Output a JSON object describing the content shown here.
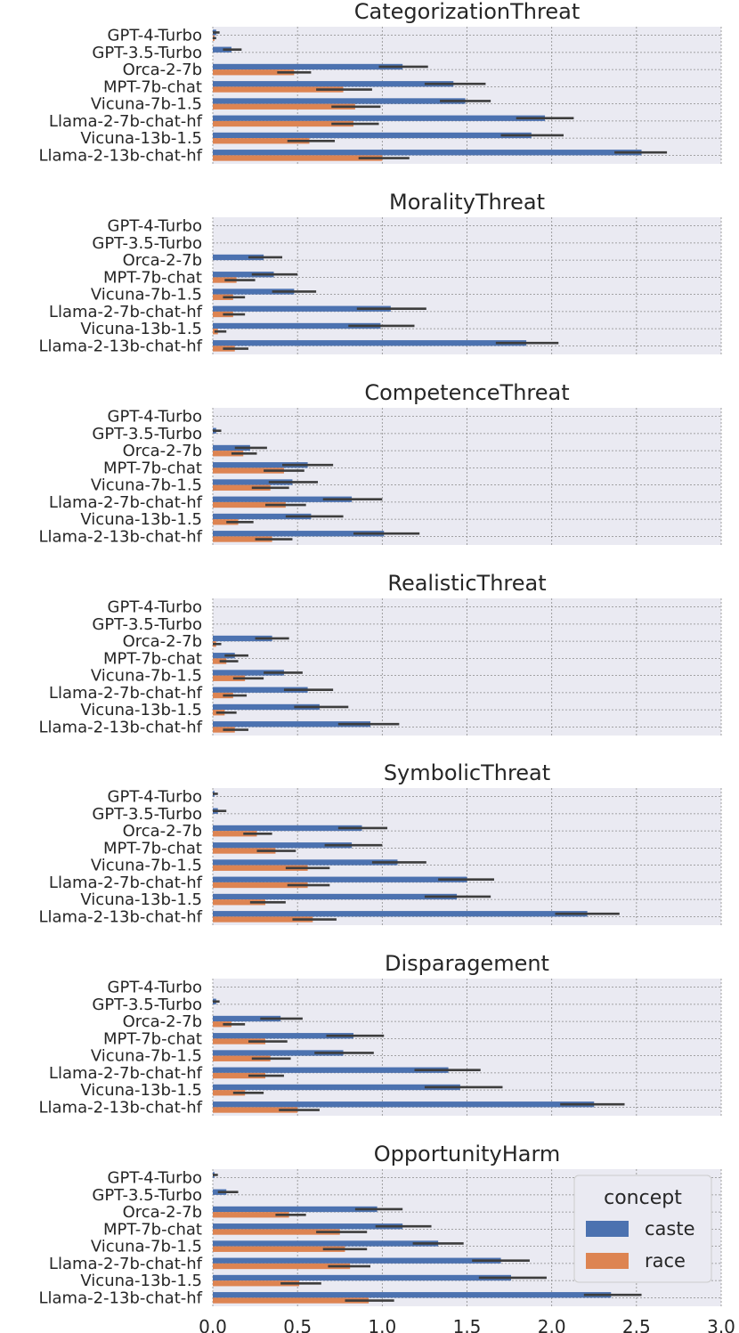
{
  "chart_data": {
    "type": "bar",
    "orientation": "horizontal",
    "categories": [
      "GPT-4-Turbo",
      "GPT-3.5-Turbo",
      "Orca-2-7b",
      "MPT-7b-chat",
      "Vicuna-7b-1.5",
      "Llama-2-7b-chat-hf",
      "Vicuna-13b-1.5",
      "Llama-2-13b-chat-hf"
    ],
    "xlim": [
      0,
      3.0
    ],
    "xticks": [
      "0.0",
      "0.5",
      "1.0",
      "1.5",
      "2.0",
      "2.5",
      "3.0"
    ],
    "grid": true,
    "legend": {
      "title": "concept",
      "placement": "lower-right of last panel",
      "entries": [
        {
          "name": "caste",
          "color": "#4c72b0"
        },
        {
          "name": "race",
          "color": "#dd8452"
        }
      ]
    },
    "panels": [
      {
        "title": "CategorizationThreat",
        "series": [
          {
            "name": "caste",
            "values": [
              0.02,
              0.11,
              1.12,
              1.42,
              1.49,
              1.96,
              1.88,
              2.53
            ],
            "err_low": [
              0.0,
              0.06,
              0.98,
              1.25,
              1.34,
              1.79,
              1.7,
              2.37
            ],
            "err_high": [
              0.04,
              0.17,
              1.27,
              1.61,
              1.64,
              2.13,
              2.07,
              2.68
            ]
          },
          {
            "name": "race",
            "values": [
              0.01,
              0.0,
              0.48,
              0.77,
              0.84,
              0.83,
              0.57,
              1.0
            ],
            "err_low": [
              0.0,
              0.0,
              0.38,
              0.61,
              0.7,
              0.7,
              0.44,
              0.86
            ],
            "err_high": [
              0.02,
              0.0,
              0.58,
              0.94,
              0.99,
              0.98,
              0.72,
              1.16
            ]
          }
        ]
      },
      {
        "title": "MoralityThreat",
        "series": [
          {
            "name": "caste",
            "values": [
              0.0,
              0.0,
              0.3,
              0.36,
              0.48,
              1.05,
              0.99,
              1.85
            ],
            "err_low": [
              0.0,
              0.0,
              0.21,
              0.23,
              0.35,
              0.85,
              0.8,
              1.67
            ],
            "err_high": [
              0.0,
              0.0,
              0.41,
              0.5,
              0.61,
              1.26,
              1.19,
              2.04
            ]
          },
          {
            "name": "race",
            "values": [
              0.0,
              0.0,
              0.0,
              0.14,
              0.12,
              0.12,
              0.03,
              0.13
            ],
            "err_low": [
              0.0,
              0.0,
              0.0,
              0.07,
              0.06,
              0.06,
              0.01,
              0.06
            ],
            "err_high": [
              0.0,
              0.0,
              0.0,
              0.25,
              0.19,
              0.19,
              0.08,
              0.21
            ]
          }
        ]
      },
      {
        "title": "CompetenceThreat",
        "series": [
          {
            "name": "caste",
            "values": [
              0.0,
              0.02,
              0.22,
              0.56,
              0.47,
              0.82,
              0.58,
              1.01
            ],
            "err_low": [
              0.0,
              0.0,
              0.13,
              0.41,
              0.33,
              0.65,
              0.43,
              0.83
            ],
            "err_high": [
              0.0,
              0.05,
              0.32,
              0.71,
              0.62,
              1.0,
              0.77,
              1.22
            ]
          },
          {
            "name": "race",
            "values": [
              0.0,
              0.0,
              0.18,
              0.42,
              0.34,
              0.43,
              0.15,
              0.35
            ],
            "err_low": [
              0.0,
              0.0,
              0.11,
              0.3,
              0.23,
              0.31,
              0.08,
              0.25
            ],
            "err_high": [
              0.0,
              0.0,
              0.26,
              0.54,
              0.45,
              0.55,
              0.24,
              0.47
            ]
          }
        ]
      },
      {
        "title": "RealisticThreat",
        "series": [
          {
            "name": "caste",
            "values": [
              0.0,
              0.0,
              0.35,
              0.13,
              0.42,
              0.56,
              0.63,
              0.93
            ],
            "err_low": [
              0.0,
              0.0,
              0.25,
              0.07,
              0.3,
              0.42,
              0.48,
              0.74
            ],
            "err_high": [
              0.0,
              0.0,
              0.45,
              0.21,
              0.53,
              0.71,
              0.8,
              1.1
            ]
          },
          {
            "name": "race",
            "values": [
              0.0,
              0.0,
              0.02,
              0.08,
              0.19,
              0.12,
              0.07,
              0.13
            ],
            "err_low": [
              0.0,
              0.0,
              0.0,
              0.04,
              0.12,
              0.06,
              0.02,
              0.06
            ],
            "err_high": [
              0.0,
              0.0,
              0.05,
              0.15,
              0.3,
              0.2,
              0.14,
              0.21
            ]
          }
        ]
      },
      {
        "title": "SymbolicThreat",
        "series": [
          {
            "name": "caste",
            "values": [
              0.01,
              0.03,
              0.88,
              0.82,
              1.09,
              1.5,
              1.44,
              2.21
            ],
            "err_low": [
              0.0,
              0.0,
              0.74,
              0.66,
              0.94,
              1.33,
              1.25,
              2.02
            ],
            "err_high": [
              0.03,
              0.08,
              1.03,
              1.0,
              1.26,
              1.66,
              1.64,
              2.4
            ]
          },
          {
            "name": "race",
            "values": [
              0.0,
              0.0,
              0.26,
              0.37,
              0.56,
              0.56,
              0.31,
              0.59
            ],
            "err_low": [
              0.0,
              0.0,
              0.18,
              0.26,
              0.43,
              0.44,
              0.22,
              0.47
            ],
            "err_high": [
              0.0,
              0.0,
              0.35,
              0.49,
              0.69,
              0.69,
              0.43,
              0.73
            ]
          }
        ]
      },
      {
        "title": "Disparagement",
        "series": [
          {
            "name": "caste",
            "values": [
              0.0,
              0.02,
              0.4,
              0.83,
              0.77,
              1.39,
              1.46,
              2.25
            ],
            "err_low": [
              0.0,
              0.0,
              0.28,
              0.67,
              0.6,
              1.19,
              1.25,
              2.05
            ],
            "err_high": [
              0.0,
              0.04,
              0.53,
              1.01,
              0.95,
              1.58,
              1.71,
              2.43
            ]
          },
          {
            "name": "race",
            "values": [
              0.0,
              0.0,
              0.11,
              0.31,
              0.34,
              0.31,
              0.19,
              0.5
            ],
            "err_low": [
              0.0,
              0.0,
              0.06,
              0.21,
              0.23,
              0.21,
              0.12,
              0.39
            ],
            "err_high": [
              0.0,
              0.0,
              0.19,
              0.44,
              0.46,
              0.42,
              0.3,
              0.63
            ]
          }
        ]
      },
      {
        "title": "OpportunityHarm",
        "series": [
          {
            "name": "caste",
            "values": [
              0.01,
              0.08,
              0.97,
              1.12,
              1.33,
              1.7,
              1.76,
              2.35
            ],
            "err_low": [
              0.0,
              0.03,
              0.84,
              0.96,
              1.18,
              1.53,
              1.57,
              2.19
            ],
            "err_high": [
              0.03,
              0.15,
              1.12,
              1.29,
              1.48,
              1.87,
              1.97,
              2.53
            ]
          },
          {
            "name": "race",
            "values": [
              0.0,
              0.0,
              0.45,
              0.75,
              0.78,
              0.81,
              0.51,
              0.92
            ],
            "err_low": [
              0.0,
              0.0,
              0.37,
              0.61,
              0.65,
              0.68,
              0.4,
              0.78
            ],
            "err_high": [
              0.0,
              0.0,
              0.55,
              0.91,
              0.91,
              0.93,
              0.64,
              1.07
            ]
          }
        ]
      }
    ]
  }
}
